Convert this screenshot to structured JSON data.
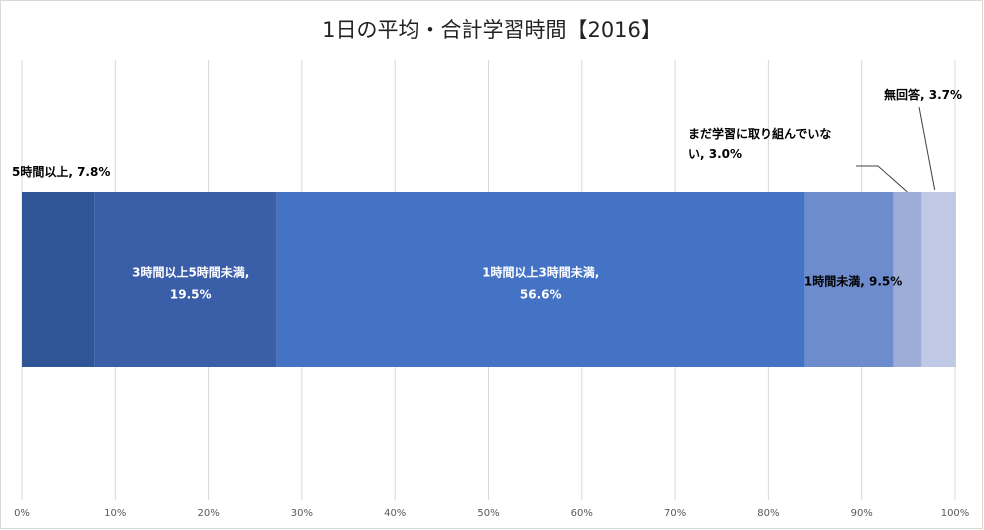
{
  "chart_data": {
    "type": "bar",
    "orientation": "horizontal-stacked-100",
    "title": "1日の平均・合計学習時間【2016】",
    "xlim": [
      0,
      100
    ],
    "x_ticks": [
      "0%",
      "10%",
      "20%",
      "30%",
      "40%",
      "50%",
      "60%",
      "70%",
      "80%",
      "90%",
      "100%"
    ],
    "grid": true,
    "legend": "none",
    "segments": [
      {
        "name": "5時間以上",
        "value": 7.8,
        "label_line1": "5時間以上, 7.8%",
        "label_line2": "",
        "color": "#2f5597",
        "label_color": "#000000"
      },
      {
        "name": "3時間以上5時間未満",
        "value": 19.5,
        "label_line1": "3時間以上5時間未満,",
        "label_line2": "19.5%",
        "color": "#3a5ea8",
        "label_color": "#ffffff"
      },
      {
        "name": "1時間以上3時間未満",
        "value": 56.6,
        "label_line1": "1時間以上3時間未満,",
        "label_line2": "56.6%",
        "color": "#4472c4",
        "label_color": "#ffffff"
      },
      {
        "name": "1時間未満",
        "value": 9.5,
        "label_line1": "1時間未満, 9.5%",
        "label_line2": "",
        "color": "#6d8ccd",
        "label_color": "#000000"
      },
      {
        "name": "まだ学習に取り組んでいない",
        "value": 3.0,
        "label_line1": "まだ学習に取り組んでいな",
        "label_line2": "い, 3.0%",
        "color": "#9dadd8",
        "label_color": "#000000"
      },
      {
        "name": "無回答",
        "value": 3.7,
        "label_line1": "無回答, 3.7%",
        "label_line2": "",
        "color": "#bfc9e5",
        "label_color": "#000000"
      }
    ]
  }
}
